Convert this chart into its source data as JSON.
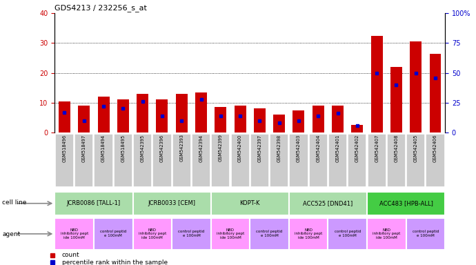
{
  "title": "GDS4213 / 232256_s_at",
  "samples": [
    "GSM518496",
    "GSM518497",
    "GSM518494",
    "GSM518495",
    "GSM542395",
    "GSM542396",
    "GSM542393",
    "GSM542394",
    "GSM542399",
    "GSM542400",
    "GSM542397",
    "GSM542398",
    "GSM542403",
    "GSM542404",
    "GSM542401",
    "GSM542402",
    "GSM542407",
    "GSM542408",
    "GSM542405",
    "GSM542406"
  ],
  "red_values": [
    10.5,
    9.0,
    12.0,
    11.0,
    13.0,
    11.0,
    13.0,
    13.5,
    8.5,
    9.0,
    8.0,
    6.0,
    7.5,
    9.0,
    9.0,
    2.5,
    32.5,
    22.0,
    30.5,
    26.5
  ],
  "blue_values": [
    17,
    10,
    22,
    20,
    26,
    14,
    10,
    28,
    14,
    14,
    10,
    8,
    10,
    14,
    16,
    6,
    50,
    40,
    50,
    46
  ],
  "cell_lines": [
    {
      "label": "JCRB0086 [TALL-1]",
      "start": 0,
      "end": 4,
      "color": "#AADDAA"
    },
    {
      "label": "JCRB0033 [CEM]",
      "start": 4,
      "end": 8,
      "color": "#AADDAA"
    },
    {
      "label": "KOPT-K",
      "start": 8,
      "end": 12,
      "color": "#AADDAA"
    },
    {
      "label": "ACC525 [DND41]",
      "start": 12,
      "end": 16,
      "color": "#AADDAA"
    },
    {
      "label": "ACC483 [HPB-ALL]",
      "start": 16,
      "end": 20,
      "color": "#44CC44"
    }
  ],
  "agents": [
    {
      "label": "NBD\ninhibitory pept\nide 100mM",
      "start": 0,
      "end": 2,
      "color": "#FF99FF"
    },
    {
      "label": "control peptid\ne 100mM",
      "start": 2,
      "end": 4,
      "color": "#CC99FF"
    },
    {
      "label": "NBD\ninhibitory pept\nide 100mM",
      "start": 4,
      "end": 6,
      "color": "#FF99FF"
    },
    {
      "label": "control peptid\ne 100mM",
      "start": 6,
      "end": 8,
      "color": "#CC99FF"
    },
    {
      "label": "NBD\ninhibitory pept\nide 100mM",
      "start": 8,
      "end": 10,
      "color": "#FF99FF"
    },
    {
      "label": "control peptid\ne 100mM",
      "start": 10,
      "end": 12,
      "color": "#CC99FF"
    },
    {
      "label": "NBD\ninhibitory pept\nide 100mM",
      "start": 12,
      "end": 14,
      "color": "#FF99FF"
    },
    {
      "label": "control peptid\ne 100mM",
      "start": 14,
      "end": 16,
      "color": "#CC99FF"
    },
    {
      "label": "NBD\ninhibitory pept\nide 100mM",
      "start": 16,
      "end": 18,
      "color": "#FF99FF"
    },
    {
      "label": "control peptid\ne 100mM",
      "start": 18,
      "end": 20,
      "color": "#CC99FF"
    }
  ],
  "ylim_left": [
    0,
    40
  ],
  "ylim_right": [
    0,
    100
  ],
  "yticks_left": [
    0,
    10,
    20,
    30,
    40
  ],
  "yticks_right": [
    0,
    25,
    50,
    75,
    100
  ],
  "bar_color": "#CC0000",
  "blue_color": "#0000CC",
  "bg_color": "#FFFFFF",
  "xticklabel_bg": "#CCCCCC",
  "cell_line_label": "cell line",
  "agent_label": "agent",
  "legend_count": "count",
  "legend_pct": "percentile rank within the sample"
}
